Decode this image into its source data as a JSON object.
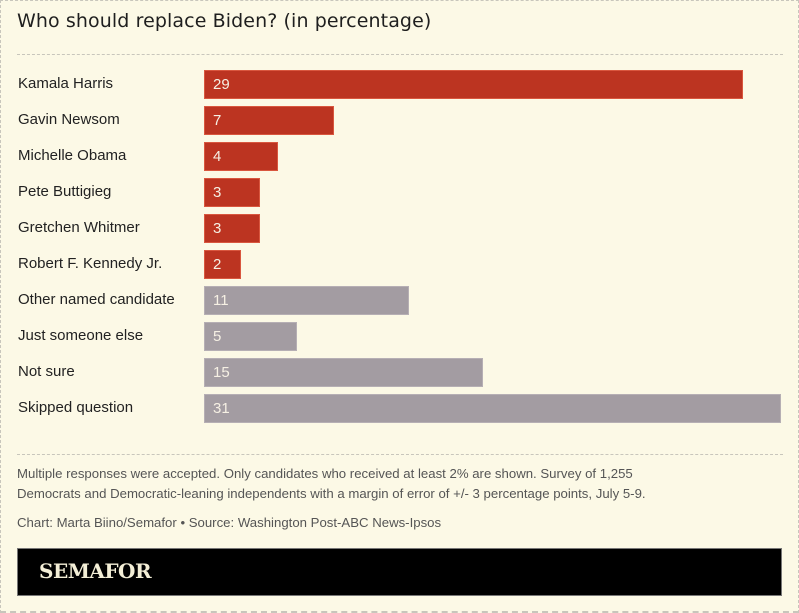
{
  "title": "Who should replace Biden? (in percentage)",
  "chart_data": {
    "type": "bar",
    "orientation": "horizontal",
    "title": "Who should replace Biden? (in percentage)",
    "xlabel": "",
    "ylabel": "",
    "xlim": [
      0,
      31
    ],
    "grid": false,
    "categories": [
      "Kamala Harris",
      "Gavin Newsom",
      "Michelle Obama",
      "Pete Buttigieg",
      "Gretchen Whitmer",
      "Robert F. Kennedy Jr.",
      "Other named candidate",
      "Just someone else",
      "Not sure",
      "Skipped question"
    ],
    "values": [
      29,
      7,
      4,
      3,
      3,
      2,
      11,
      5,
      15,
      31
    ],
    "value_labels": [
      "29",
      "7",
      "4",
      "3",
      "3",
      "2",
      "11",
      "5",
      "15",
      "31"
    ],
    "groups": [
      "candidate",
      "candidate",
      "candidate",
      "candidate",
      "candidate",
      "candidate",
      "other",
      "other",
      "other",
      "other"
    ]
  },
  "colors": {
    "candidate": "#bc3421",
    "other": "#a39ca2",
    "background": "#fcf9e6"
  },
  "notes": {
    "line1": "Multiple responses were accepted. Only candidates who received at least 2% are shown. Survey of 1,255",
    "line2": "Democrats and Democratic-leaning independents with a margin of error of +/- 3 percentage points, July 5-9.",
    "credit": "Chart: Marta Biino/Semafor • Source: Washington Post-ABC News-Ipsos"
  },
  "brand": "SEMAFOR"
}
